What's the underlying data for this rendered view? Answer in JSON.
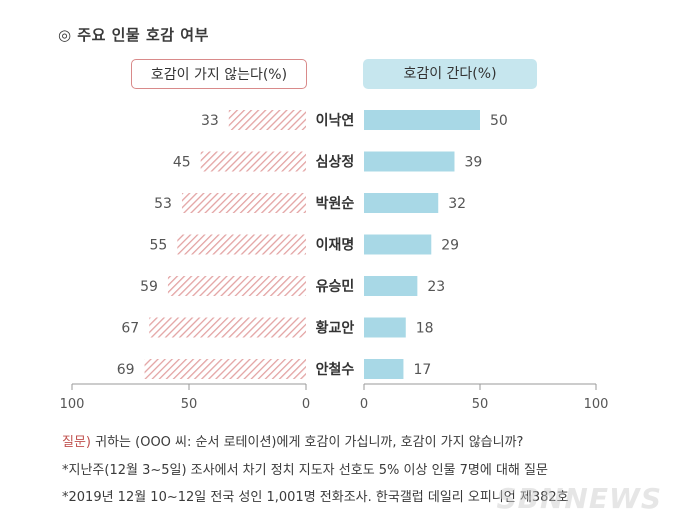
{
  "title": "◎ 주요 인물 호감 여부",
  "legend": {
    "left": "호감이 가지 않는다(%)",
    "right": "호감이 간다(%)"
  },
  "colors": {
    "unfavorable_hatch": "#e3a3a3",
    "favorable": "#a8d8e6",
    "axis": "#9a9a9a",
    "question_label": "#c0504d"
  },
  "chart_data": {
    "type": "bar",
    "categories": [
      "이낙연",
      "심상정",
      "박원순",
      "이재명",
      "유승민",
      "황교안",
      "안철수"
    ],
    "series": [
      {
        "name": "호감이 가지 않는다(%)",
        "values": [
          33,
          45,
          53,
          55,
          59,
          67,
          69
        ]
      },
      {
        "name": "호감이 간다(%)",
        "values": [
          50,
          39,
          32,
          29,
          23,
          18,
          17
        ]
      }
    ],
    "left_axis": {
      "ticks": [
        100,
        50,
        0
      ],
      "range": [
        100,
        0
      ]
    },
    "right_axis": {
      "ticks": [
        0,
        50,
        100
      ],
      "range": [
        0,
        100
      ]
    }
  },
  "notes": {
    "question_prefix": "질문)",
    "question_text": " 귀하는 (OOO 씨: 순서 로테이션)에게 호감이 가십니까, 호감이 가지 않습니까?",
    "note2": "*지난주(12월 3~5일) 조사에서 차기 정치 지도자 선호도 5% 이상 인물 7명에 대해 질문",
    "note3": "*2019년 12월 10~12일 전국 성인 1,001명 전화조사. 한국갤럽 데일리 오피니언 제382호"
  },
  "watermark": "SBNNEWS"
}
